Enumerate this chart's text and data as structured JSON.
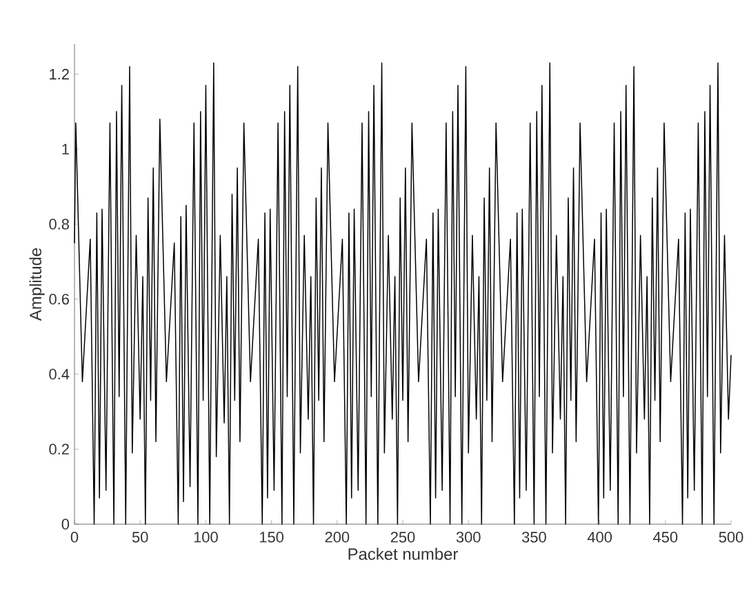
{
  "chart_data": {
    "type": "line",
    "xlabel": "Packet number",
    "ylabel": "Amplitude",
    "xlim": [
      0,
      500
    ],
    "ylim": [
      0,
      1.28
    ],
    "xticks": [
      0,
      50,
      100,
      150,
      200,
      250,
      300,
      350,
      400,
      450,
      500
    ],
    "yticks": [
      0,
      0.2,
      0.4,
      0.6,
      0.8,
      1,
      1.2
    ],
    "grid": false,
    "series": [
      {
        "color": "#000000",
        "x": [
          0,
          1,
          6,
          12,
          15,
          17,
          19,
          21,
          24,
          27,
          30,
          32,
          34,
          36,
          39,
          42,
          44,
          47,
          50,
          52,
          54,
          56,
          58,
          60,
          62,
          65,
          70,
          76,
          79,
          81,
          83,
          85,
          88,
          91,
          94,
          96,
          98,
          100,
          103,
          106,
          108,
          111,
          114,
          116,
          118,
          120,
          122,
          124,
          126,
          129,
          134,
          140,
          143,
          145,
          147,
          149,
          152,
          155,
          158,
          160,
          162,
          164,
          167,
          170,
          172,
          175,
          178,
          180,
          182,
          184,
          186,
          188,
          190,
          193,
          198,
          204,
          207,
          209,
          211,
          213,
          216,
          219,
          222,
          224,
          226,
          228,
          231,
          234,
          236,
          239,
          242,
          244,
          246,
          248,
          250,
          252,
          254,
          257,
          262,
          268,
          271,
          273,
          275,
          277,
          280,
          283,
          286,
          288,
          290,
          292,
          295,
          298,
          300,
          303,
          306,
          308,
          310,
          312,
          314,
          316,
          318,
          321,
          326,
          332,
          335,
          337,
          339,
          341,
          344,
          347,
          350,
          352,
          354,
          356,
          359,
          362,
          364,
          367,
          370,
          372,
          374,
          376,
          378,
          380,
          382,
          385,
          390,
          396,
          399,
          401,
          403,
          405,
          408,
          411,
          414,
          416,
          418,
          420,
          423,
          426,
          428,
          431,
          434,
          436,
          438,
          440,
          442,
          444,
          446,
          449,
          454,
          460,
          463,
          465,
          467,
          469,
          472,
          475,
          478,
          480,
          482,
          484,
          487,
          490,
          492,
          495,
          498,
          500
        ],
        "values": [
          0.75,
          1.07,
          0.38,
          0.76,
          0,
          0.83,
          0.07,
          0.84,
          0.09,
          1.07,
          0,
          1.1,
          0.34,
          1.17,
          0,
          1.22,
          0.19,
          0.77,
          0.28,
          0.66,
          0,
          0.87,
          0.33,
          0.95,
          0.22,
          1.08,
          0.38,
          0.75,
          0,
          0.82,
          0.06,
          0.85,
          0.1,
          1.07,
          0,
          1.1,
          0.33,
          1.17,
          0,
          1.23,
          0.18,
          0.77,
          0.27,
          0.66,
          0,
          0.88,
          0.33,
          0.95,
          0.22,
          1.07,
          0.38,
          0.76,
          0,
          0.83,
          0.07,
          0.84,
          0.09,
          1.07,
          0,
          1.1,
          0.34,
          1.17,
          0,
          1.22,
          0.19,
          0.77,
          0.28,
          0.66,
          0,
          0.87,
          0.33,
          0.95,
          0.22,
          1.07,
          0.38,
          0.76,
          0,
          0.83,
          0.07,
          0.84,
          0.09,
          1.07,
          0,
          1.1,
          0.34,
          1.17,
          0,
          1.23,
          0.19,
          0.77,
          0.28,
          0.66,
          0,
          0.87,
          0.33,
          0.95,
          0.22,
          1.07,
          0.38,
          0.76,
          0,
          0.83,
          0.07,
          0.84,
          0.09,
          1.07,
          0,
          1.1,
          0.34,
          1.17,
          0,
          1.22,
          0.19,
          0.77,
          0.28,
          0.66,
          0,
          0.87,
          0.33,
          0.95,
          0.22,
          1.07,
          0.38,
          0.76,
          0,
          0.83,
          0.07,
          0.84,
          0.09,
          1.07,
          0,
          1.1,
          0.34,
          1.17,
          0,
          1.23,
          0.19,
          0.77,
          0.28,
          0.66,
          0,
          0.87,
          0.33,
          0.95,
          0.22,
          1.07,
          0.38,
          0.76,
          0,
          0.83,
          0.07,
          0.84,
          0.09,
          1.07,
          0,
          1.1,
          0.34,
          1.17,
          0,
          1.22,
          0.19,
          0.77,
          0.28,
          0.66,
          0,
          0.87,
          0.33,
          0.95,
          0.22,
          1.07,
          0.38,
          0.76,
          0,
          0.83,
          0.07,
          0.84,
          0.09,
          1.07,
          0,
          1.1,
          0.34,
          1.17,
          0,
          1.23,
          0.19,
          0.77,
          0.28,
          0.45
        ]
      }
    ]
  }
}
